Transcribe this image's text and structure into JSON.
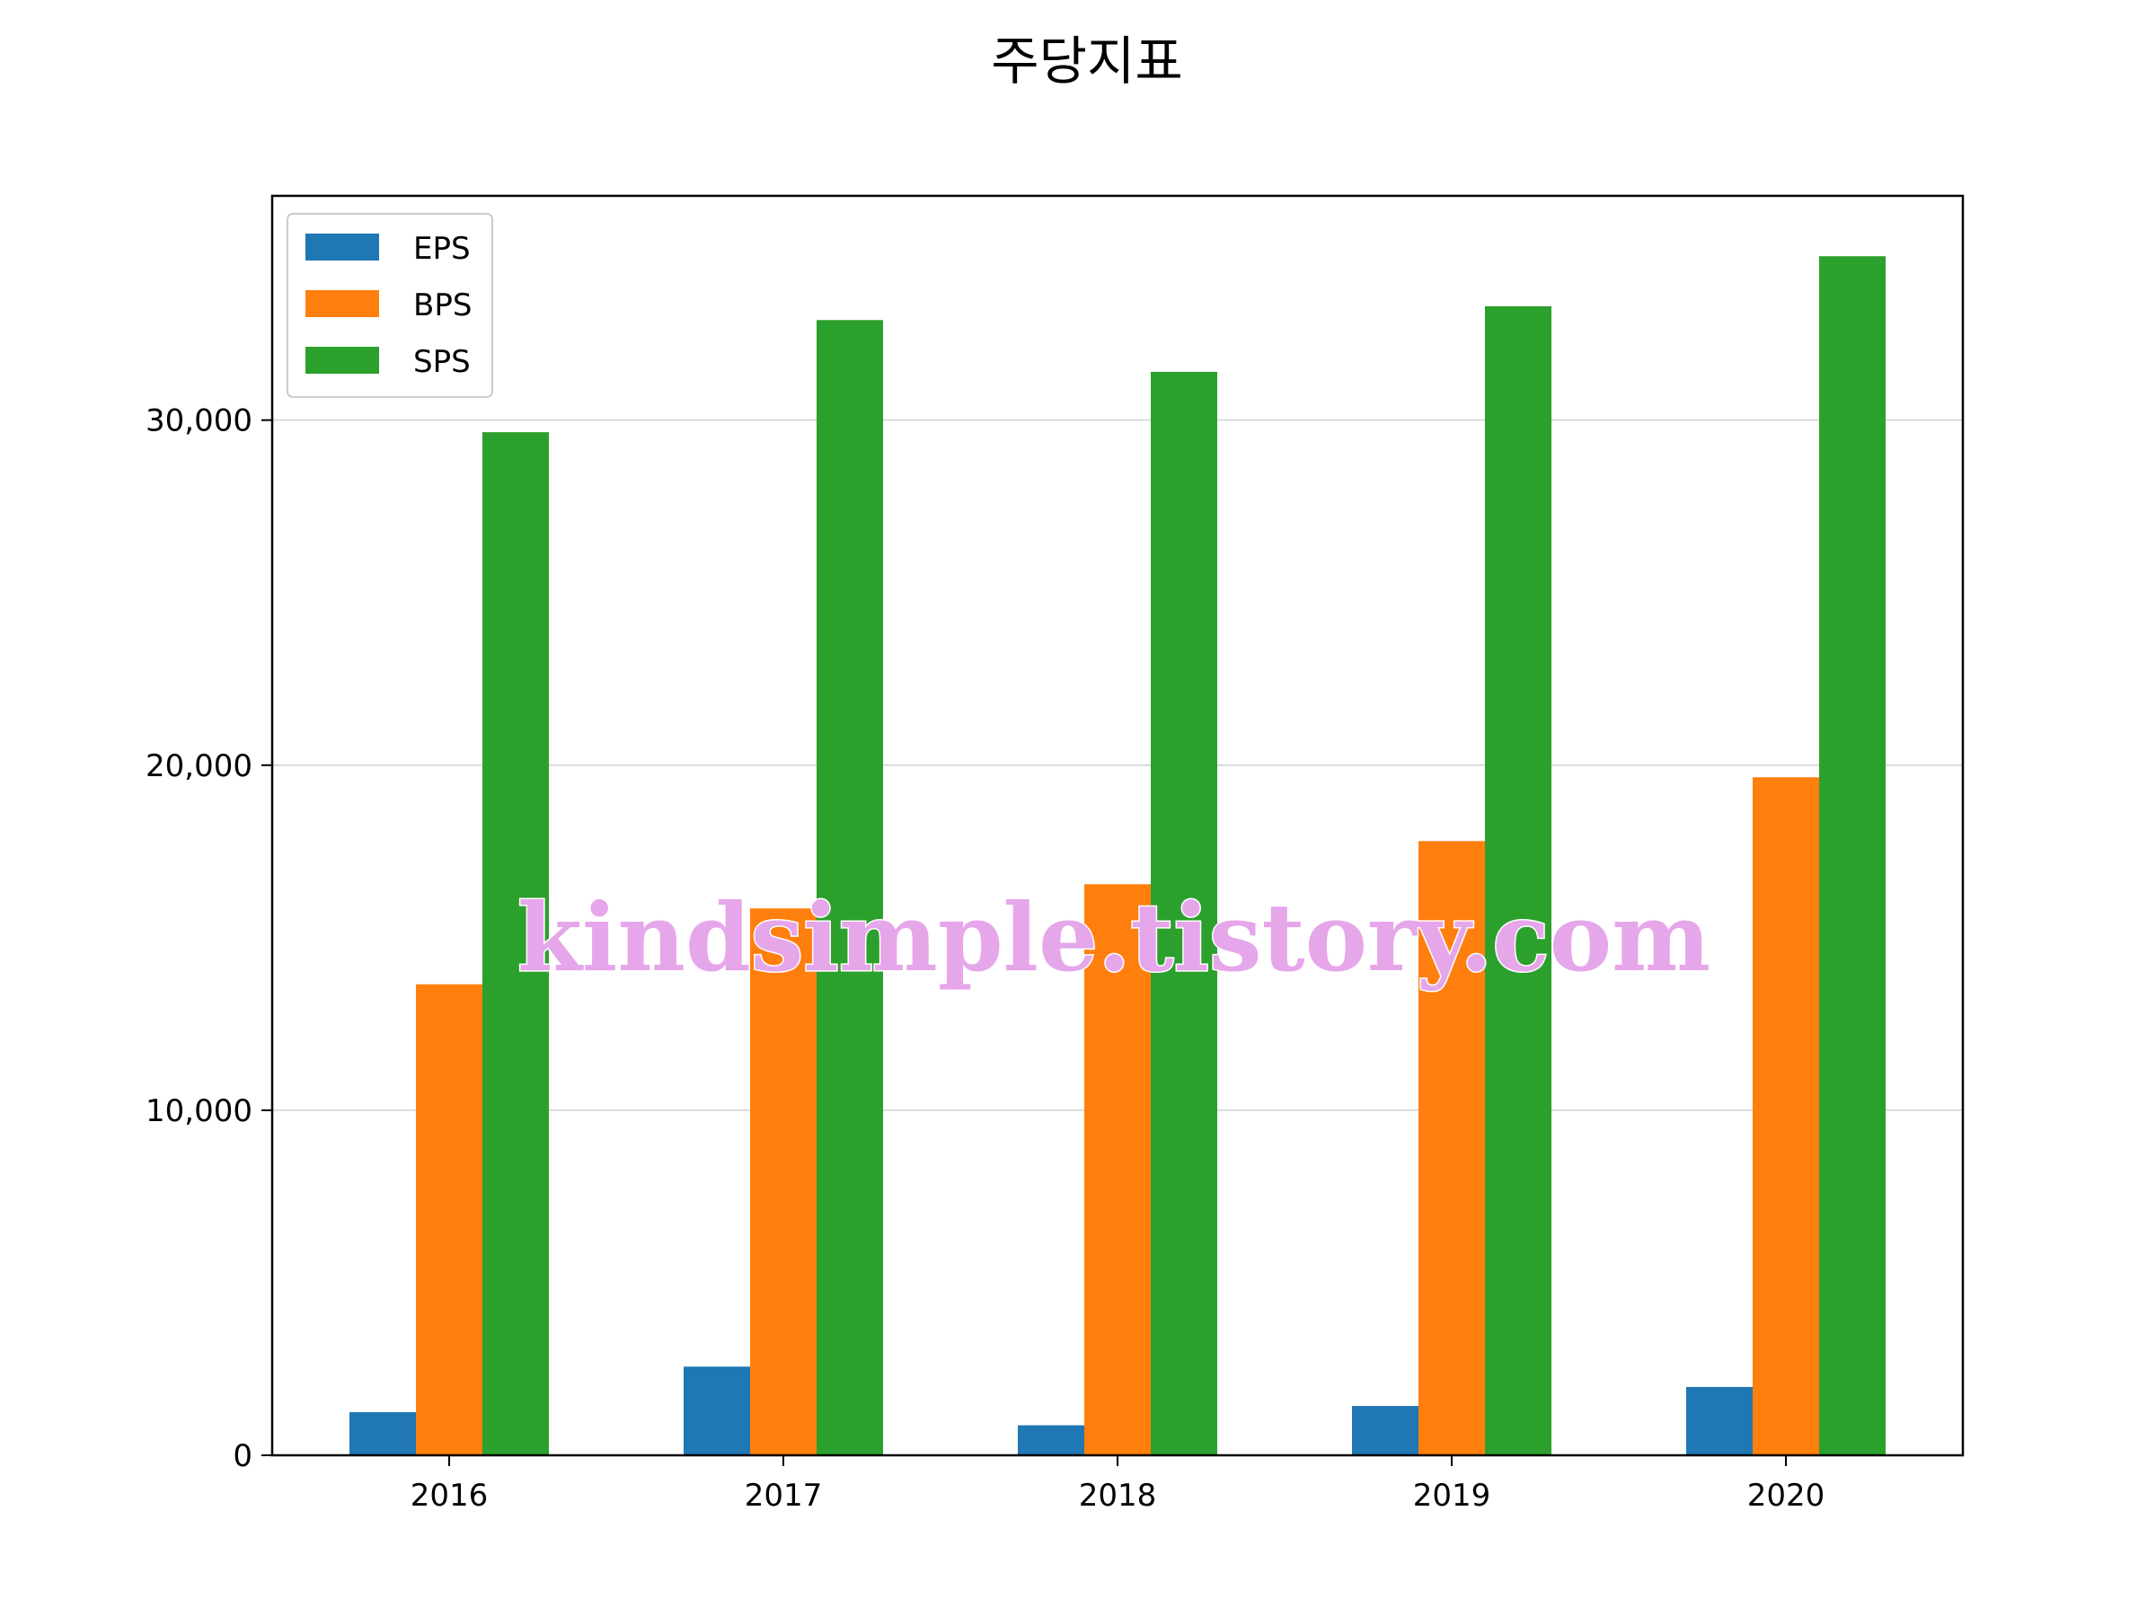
{
  "chart_data": {
    "type": "bar",
    "title": "주당지표",
    "xlabel": "",
    "ylabel": "",
    "categories": [
      "2016",
      "2017",
      "2018",
      "2019",
      "2020"
    ],
    "series": [
      {
        "name": "EPS",
        "color": "#1f77b4",
        "values": [
          1250,
          2570,
          870,
          1430,
          1980
        ]
      },
      {
        "name": "BPS",
        "color": "#ff7f0e",
        "values": [
          13650,
          15850,
          16550,
          17800,
          19650
        ]
      },
      {
        "name": "SPS",
        "color": "#2ca02c",
        "values": [
          29650,
          32900,
          31400,
          33300,
          34750
        ]
      }
    ],
    "ylim": [
      0,
      36500
    ],
    "yticks": [
      0,
      10000,
      20000,
      30000
    ],
    "ytick_labels": [
      "0",
      "10,000",
      "20,000",
      "30,000"
    ],
    "grid": "y",
    "legend_position": "top-left"
  },
  "watermark": "kindsimple.tistory.com"
}
